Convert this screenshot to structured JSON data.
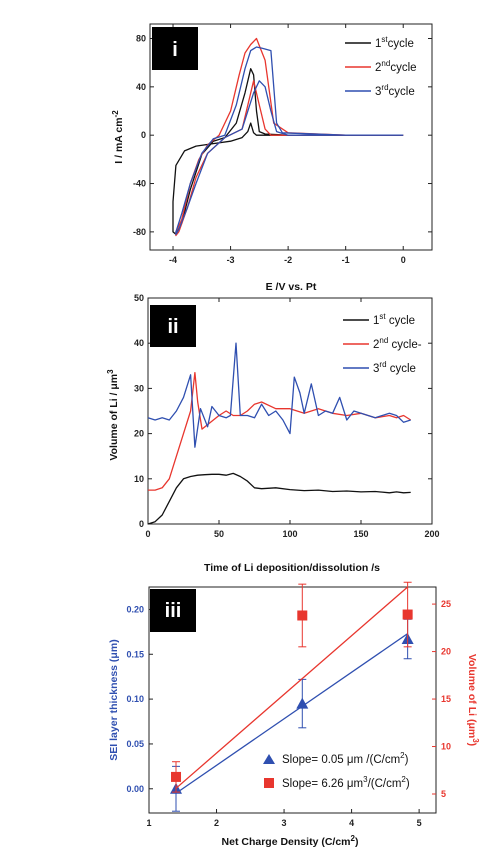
{
  "chart_data": [
    {
      "type": "line",
      "panel_label": "i",
      "xlabel": "E /V vs. Pt",
      "ylabel": "I / mA cm",
      "ylabel_sup": "-2",
      "xlim": [
        -4.4,
        0.5
      ],
      "ylim": [
        -95,
        92
      ],
      "xticks": [
        -4,
        -3,
        -2,
        -1,
        0
      ],
      "yticks": [
        80,
        40,
        0,
        -40,
        -80
      ],
      "legend_position": "top-right",
      "series": [
        {
          "name": "1",
          "name_sup": "st",
          "name_suffix": "cycle",
          "color": "#111111",
          "x": [
            0.0,
            -1.5,
            -2.2,
            -2.45,
            -2.55,
            -2.6,
            -2.65,
            -2.7,
            -2.8,
            -3.0,
            -3.3,
            -3.6,
            -3.8,
            -3.95,
            -4.0,
            -4.0,
            -3.95,
            -3.85,
            -3.7,
            -3.5,
            -3.3,
            -3.1,
            -2.9,
            -2.75,
            -2.65,
            -2.6,
            -2.55,
            -2.5,
            -2.4,
            -2.0,
            -1.0,
            0.0
          ],
          "y": [
            0,
            0,
            0,
            0,
            0,
            2,
            10,
            3,
            -2,
            -5,
            -7,
            -9,
            -13,
            -25,
            -55,
            -80,
            -82,
            -73,
            -45,
            -16,
            -5,
            -2,
            10,
            35,
            55,
            50,
            20,
            3,
            1,
            0,
            0,
            0
          ]
        },
        {
          "name": "2",
          "name_sup": "nd",
          "name_suffix": "cycle",
          "color": "#e8362e",
          "x": [
            0.0,
            -1.5,
            -2.1,
            -2.3,
            -2.4,
            -2.5,
            -2.6,
            -2.8,
            -3.1,
            -3.4,
            -3.6,
            -3.75,
            -3.9,
            -3.95,
            -3.95,
            -3.85,
            -3.7,
            -3.55,
            -3.4,
            -3.2,
            -3.0,
            -2.85,
            -2.75,
            -2.65,
            -2.55,
            -2.4,
            -2.25,
            -2.0,
            -1.0,
            0.0
          ],
          "y": [
            0,
            0,
            0,
            0,
            5,
            25,
            45,
            5,
            -2,
            -15,
            -35,
            -60,
            -80,
            -83,
            -80,
            -70,
            -40,
            -20,
            -8,
            0,
            20,
            50,
            68,
            75,
            80,
            62,
            10,
            2,
            0,
            0
          ]
        },
        {
          "name": "3",
          "name_sup": "rd",
          "name_suffix": "cycle",
          "color": "#2f4fb0",
          "x": [
            0.0,
            -1.5,
            -2.0,
            -2.2,
            -2.3,
            -2.4,
            -2.5,
            -2.6,
            -2.8,
            -3.1,
            -3.4,
            -3.6,
            -3.75,
            -3.9,
            -3.95,
            -3.95,
            -3.85,
            -3.7,
            -3.5,
            -3.3,
            -3.1,
            -2.9,
            -2.75,
            -2.65,
            -2.55,
            -2.45,
            -2.3,
            -2.2,
            -2.1,
            -1.0,
            0.0
          ],
          "y": [
            0,
            0,
            0,
            3,
            20,
            40,
            45,
            35,
            5,
            -2,
            -15,
            -40,
            -60,
            -78,
            -82,
            -80,
            -65,
            -40,
            -15,
            -3,
            0,
            25,
            55,
            70,
            73,
            72,
            70,
            10,
            2,
            0,
            0
          ]
        }
      ]
    },
    {
      "type": "line",
      "panel_label": "ii",
      "xlabel": "Time of Li deposition/dissolution /s",
      "ylabel": "Volume of Li / μm",
      "ylabel_sup": "3",
      "xlim": [
        0,
        200
      ],
      "ylim": [
        0,
        50
      ],
      "xticks": [
        0,
        50,
        100,
        150,
        200
      ],
      "yticks": [
        0,
        10,
        20,
        30,
        40,
        50
      ],
      "legend_position": "top-right",
      "series": [
        {
          "name": "1",
          "name_sup": "st",
          "name_suffix": " cycle",
          "color": "#111111",
          "x": [
            0,
            5,
            10,
            15,
            20,
            25,
            30,
            35,
            40,
            45,
            50,
            55,
            60,
            65,
            70,
            75,
            80,
            90,
            100,
            110,
            120,
            130,
            140,
            150,
            160,
            170,
            175,
            180,
            185
          ],
          "y": [
            0,
            0.5,
            2,
            5,
            8,
            10,
            10.5,
            10.8,
            10.9,
            11,
            11,
            10.8,
            11.2,
            10.5,
            9.5,
            8,
            7.8,
            8,
            7.6,
            7.4,
            7.5,
            7.2,
            7.3,
            7.1,
            7.2,
            6.9,
            7.1,
            6.9,
            7
          ]
        },
        {
          "name": "2",
          "name_sup": "nd",
          "name_suffix": " cycle-",
          "color": "#e8362e",
          "x": [
            0,
            5,
            10,
            15,
            20,
            25,
            30,
            33,
            35,
            38,
            42,
            50,
            55,
            60,
            65,
            70,
            75,
            80,
            90,
            100,
            110,
            120,
            130,
            140,
            150,
            160,
            170,
            175,
            180,
            185
          ],
          "y": [
            7.5,
            7.5,
            8,
            10,
            15,
            20,
            25,
            33.5,
            27,
            21,
            22,
            24,
            25,
            24,
            24,
            25,
            26.5,
            27,
            25.5,
            25.5,
            24.5,
            25.5,
            24.5,
            24,
            24.5,
            23.5,
            24,
            23.5,
            24,
            23
          ]
        },
        {
          "name": "3",
          "name_sup": "rd",
          "name_suffix": " cycle",
          "color": "#2f4fb0",
          "x": [
            0,
            5,
            10,
            15,
            20,
            25,
            30,
            33,
            37,
            42,
            45,
            50,
            55,
            58,
            62,
            65,
            70,
            75,
            80,
            85,
            90,
            95,
            100,
            103,
            107,
            110,
            115,
            120,
            125,
            130,
            135,
            140,
            145,
            150,
            155,
            160,
            165,
            170,
            175,
            180,
            185
          ],
          "y": [
            23.5,
            23,
            23.5,
            23,
            25,
            28,
            33,
            17,
            25.5,
            21.5,
            26,
            24,
            23.5,
            24,
            40,
            24,
            24,
            23.5,
            26.5,
            24,
            25,
            23,
            20,
            32.5,
            29,
            24.5,
            31,
            24,
            25,
            24.5,
            28,
            23,
            25,
            24.5,
            24,
            23.5,
            24,
            24.5,
            24,
            22.5,
            23
          ]
        }
      ]
    },
    {
      "type": "scatter",
      "panel_label": "iii",
      "xlabel": "Net Charge Density (C/cm",
      "xlabel_sup": "2",
      "xlabel_suffix": ")",
      "ylabel_left": "SEI layer thickness (μm)",
      "ylabel_right": "Volume of Li (μm",
      "ylabel_right_sup": "3",
      "ylabel_right_suffix": ")",
      "xlim": [
        1,
        5.25
      ],
      "ylim_left": [
        -0.027,
        0.225
      ],
      "ylim_right": [
        3,
        26.8
      ],
      "xticks": [
        1,
        2,
        3,
        4,
        5
      ],
      "yticks_left": [
        0.0,
        0.05,
        0.1,
        0.15,
        0.2
      ],
      "yticks_right": [
        5,
        10,
        15,
        20,
        25
      ],
      "legend_position": "bottom-right",
      "series": [
        {
          "marker": "triangle",
          "color": "#2f4fb0",
          "axis": "left",
          "legend_text": "Slope= 0.05 μm /(C/cm",
          "legend_sup": "2",
          "legend_suffix": ")",
          "x": [
            1.4,
            3.27,
            4.83
          ],
          "y": [
            0.0,
            0.095,
            0.167
          ],
          "yerr": [
            0.025,
            0.027,
            0.022
          ],
          "fit_x": [
            1.4,
            4.83
          ],
          "fit_y": [
            -0.005,
            0.173
          ]
        },
        {
          "marker": "square",
          "color": "#e8362e",
          "axis": "right",
          "legend_text": "Slope= 6.26 μm",
          "legend_sup": "3",
          "legend_suffix": "/(C/cm",
          "legend_sup2": "2",
          "legend_suffix2": ")",
          "x": [
            1.4,
            3.27,
            4.83
          ],
          "y": [
            6.8,
            23.8,
            23.9
          ],
          "yerr": [
            1.6,
            3.3,
            3.4
          ],
          "fit_x": [
            1.4,
            4.83
          ],
          "fit_y": [
            5.6,
            26.8
          ]
        }
      ]
    }
  ]
}
